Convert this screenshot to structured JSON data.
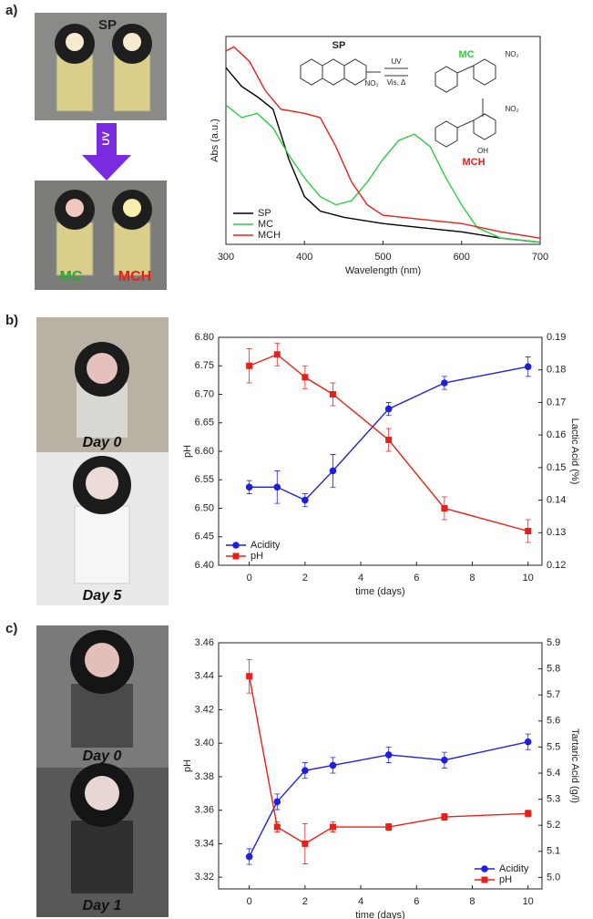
{
  "panel_labels": [
    "a)",
    "b)",
    "c)"
  ],
  "photos": {
    "a_top": "SP",
    "uv": "UV",
    "a_left": "MC",
    "a_right": "MCH",
    "b": [
      "Day 0",
      "Day 5"
    ],
    "c": [
      "Day 0",
      "Day 1"
    ]
  },
  "chart_data": [
    {
      "type": "line",
      "xlabel": "Wavelength (nm)",
      "ylabel": "Abs (a.u.)",
      "xlim": [
        300,
        700
      ],
      "xticks": [
        300,
        400,
        500,
        600,
        700
      ],
      "ylim": [
        0,
        1
      ],
      "legend": "lower left",
      "annotations": [
        "SP",
        "MC",
        "MCH",
        "UV",
        "Vis, Δ",
        "NO₂",
        "NO₂",
        "NO₂",
        "OH"
      ],
      "series": [
        {
          "name": "SP",
          "color": "#000000",
          "x": [
            300,
            320,
            340,
            360,
            380,
            400,
            420,
            450,
            500,
            550,
            600,
            650,
            700
          ],
          "values": [
            0.85,
            0.76,
            0.71,
            0.65,
            0.41,
            0.23,
            0.16,
            0.13,
            0.1,
            0.08,
            0.06,
            0.03,
            0.01
          ]
        },
        {
          "name": "MC",
          "color": "#2ecc40",
          "x": [
            300,
            320,
            340,
            360,
            380,
            400,
            420,
            440,
            460,
            480,
            500,
            520,
            540,
            560,
            580,
            600,
            620,
            650,
            700
          ],
          "values": [
            0.67,
            0.61,
            0.63,
            0.56,
            0.43,
            0.32,
            0.23,
            0.19,
            0.21,
            0.3,
            0.41,
            0.5,
            0.53,
            0.47,
            0.32,
            0.19,
            0.08,
            0.03,
            0.01
          ]
        },
        {
          "name": "MCH",
          "color": "#e8201a",
          "x": [
            300,
            310,
            330,
            350,
            370,
            400,
            420,
            440,
            460,
            480,
            500,
            550,
            600,
            650,
            700
          ],
          "values": [
            0.93,
            0.95,
            0.88,
            0.74,
            0.65,
            0.63,
            0.61,
            0.47,
            0.3,
            0.19,
            0.14,
            0.12,
            0.1,
            0.06,
            0.03
          ]
        }
      ]
    },
    {
      "type": "line",
      "xlabel": "time (days)",
      "ylabel": "pH",
      "y2label": "Lactic Acid (%)",
      "x": [
        0,
        1,
        2,
        3,
        5,
        7,
        10
      ],
      "xlim": [
        -1.1,
        10.5
      ],
      "xticks": [
        0,
        2,
        4,
        6,
        8,
        10
      ],
      "ylim": [
        6.4,
        6.8
      ],
      "yticks": [
        {
          "value": 6.4,
          "label": "6.40"
        },
        6.45,
        {
          "value": 6.5,
          "label": "6.50"
        },
        6.55,
        {
          "value": 6.6,
          "label": "6.60"
        },
        6.65,
        {
          "value": 6.7,
          "label": "6.70"
        },
        6.75,
        {
          "value": 6.8,
          "label": "6.80"
        }
      ],
      "y2lim": [
        0.12,
        0.19
      ],
      "y2ticks": [
        0.12,
        0.13,
        0.14,
        0.15,
        0.16,
        0.17,
        0.18,
        0.19
      ],
      "legend": "lower left",
      "series": [
        {
          "name": "Acidity",
          "color": "#1f1fe0",
          "marker": "circle",
          "axis": "y2",
          "values": [
            0.144,
            0.144,
            0.14,
            0.149,
            0.168,
            0.176,
            0.181
          ],
          "errors": [
            0.002,
            0.005,
            0.002,
            0.005,
            0.002,
            0.002,
            0.003
          ]
        },
        {
          "name": "pH",
          "color": "#e8201a",
          "marker": "square",
          "values": [
            6.75,
            6.77,
            6.73,
            6.7,
            6.62,
            6.5,
            6.46
          ],
          "errors": [
            0.03,
            0.02,
            0.02,
            0.02,
            0.02,
            0.02,
            0.02
          ]
        }
      ]
    },
    {
      "type": "line",
      "xlabel": "time (days)",
      "ylabel": "pH",
      "y2label": "Tartaric Acid (g/l)",
      "x": [
        0,
        1,
        2,
        3,
        5,
        7,
        10
      ],
      "xlim": [
        -1.1,
        10.5
      ],
      "xticks": [
        0,
        2,
        4,
        6,
        8,
        10
      ],
      "ylim": [
        3.313,
        3.46
      ],
      "yticks": [
        3.32,
        3.34,
        3.36,
        3.38,
        {
          "value": 3.4,
          "label": "3.40"
        },
        3.42,
        3.44,
        3.46
      ],
      "y2lim": [
        4.956,
        5.9
      ],
      "y2ticks": [
        {
          "value": 5,
          "label": "5.0"
        },
        5.1,
        5.2,
        5.3,
        5.4,
        5.5,
        5.6,
        5.7,
        5.8,
        5.9
      ],
      "legend": "lower right",
      "series": [
        {
          "name": "Acidity",
          "color": "#1f1fe0",
          "marker": "circle",
          "axis": "y2",
          "values": [
            5.08,
            5.29,
            5.41,
            5.43,
            5.47,
            5.45,
            5.52
          ],
          "errors": [
            0.03,
            0.03,
            0.03,
            0.03,
            0.03,
            0.03,
            0.03
          ]
        },
        {
          "name": "pH",
          "color": "#e8201a",
          "marker": "square",
          "values": [
            3.44,
            3.35,
            3.34,
            3.35,
            3.35,
            3.356,
            3.358
          ],
          "errors": [
            0.01,
            0.003,
            0.012,
            0.003,
            0.002,
            0.002,
            0.002
          ]
        }
      ]
    }
  ]
}
